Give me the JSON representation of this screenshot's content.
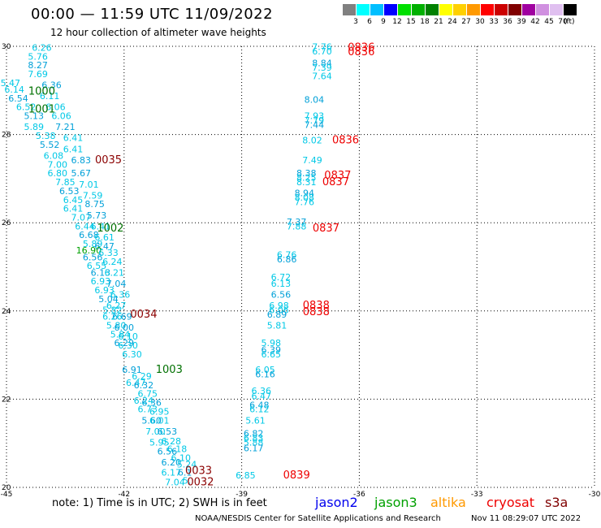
{
  "header": {
    "title": "00:00 — 11:59 UTC 11/09/2022",
    "subtitle": "12 hour collection of altimeter wave heights"
  },
  "legend": {
    "unit": "(ft)",
    "bins": [
      {
        "label": "3",
        "color": "#808080"
      },
      {
        "label": "6",
        "color": "#00ffff"
      },
      {
        "label": "9",
        "color": "#00bfff"
      },
      {
        "label": "12",
        "color": "#0000ff"
      },
      {
        "label": "15",
        "color": "#00e000"
      },
      {
        "label": "18",
        "color": "#00b000"
      },
      {
        "label": "21",
        "color": "#008000"
      },
      {
        "label": "24",
        "color": "#ffff00"
      },
      {
        "label": "27",
        "color": "#ffd000"
      },
      {
        "label": "30",
        "color": "#ff9900"
      },
      {
        "label": "33",
        "color": "#ff0000"
      },
      {
        "label": "36",
        "color": "#cc0000"
      },
      {
        "label": "39",
        "color": "#800000"
      },
      {
        "label": "42",
        "color": "#a000a0"
      },
      {
        "label": "45",
        "color": "#d090e0"
      },
      {
        "label": "70",
        "color": "#e0c0f0"
      },
      {
        "label": "",
        "color": "#000000"
      }
    ]
  },
  "footer": {
    "note": "note: 1) Time is in UTC; 2) SWH is in feet",
    "missions": [
      {
        "name": "jason2",
        "color": "#0000ee"
      },
      {
        "name": "jason3",
        "color": "#00a000"
      },
      {
        "name": "altika",
        "color": "#ff9900"
      },
      {
        "name": "cryosat",
        "color": "#ee0000"
      },
      {
        "name": "s3a",
        "color": "#800000"
      }
    ],
    "credit": "NOAA/NESDIS Center for Satellite Applications and Research",
    "timestamp": "Nov 11 08:29:07 UTC 2022"
  },
  "chart_data": {
    "type": "scatter",
    "xlim": [
      -45,
      -30
    ],
    "ylim": [
      20,
      30
    ],
    "x_ticks": [
      "-45",
      "-42",
      "-39",
      "-36",
      "-33",
      "-30"
    ],
    "y_ticks": [
      "20",
      "22",
      "24",
      "26",
      "28",
      "30"
    ],
    "x_tick_values": [
      -45,
      -42,
      -39,
      -36,
      -33,
      -30
    ],
    "y_tick_values": [
      20,
      22,
      24,
      26,
      28,
      30
    ],
    "grid": true,
    "wave_color": "#00c8e6",
    "wave_color_dark": "#00a0d8",
    "tracks": [
      {
        "labels": [
          {
            "text": "1000",
            "lon": -44.1,
            "lat": 28.9,
            "color": "#007000"
          },
          {
            "text": "1001",
            "lon": -44.1,
            "lat": 28.5,
            "color": "#007000"
          },
          {
            "text": "1002",
            "lon": -42.35,
            "lat": 25.8,
            "color": "#007000"
          },
          {
            "text": "1003",
            "lon": -40.85,
            "lat": 22.6,
            "color": "#007000"
          }
        ],
        "points": [
          {
            "lon": -44.1,
            "lat": 29.9,
            "v": "6.26"
          },
          {
            "lon": -44.2,
            "lat": 29.7,
            "v": "5.76"
          },
          {
            "lon": -44.2,
            "lat": 29.5,
            "v": "8.27"
          },
          {
            "lon": -44.2,
            "lat": 29.3,
            "v": "7.69"
          },
          {
            "lon": -44.9,
            "lat": 29.1,
            "v": "5.47"
          },
          {
            "lon": -43.85,
            "lat": 29.05,
            "v": "6.36"
          },
          {
            "lon": -44.8,
            "lat": 28.95,
            "v": "6.14"
          },
          {
            "lon": -43.9,
            "lat": 28.8,
            "v": "6.11"
          },
          {
            "lon": -44.7,
            "lat": 28.75,
            "v": "6.54"
          },
          {
            "lon": -44.5,
            "lat": 28.55,
            "v": "6.52"
          },
          {
            "lon": -43.75,
            "lat": 28.55,
            "v": "6.06"
          },
          {
            "lon": -44.3,
            "lat": 28.35,
            "v": "5.13"
          },
          {
            "lon": -43.6,
            "lat": 28.35,
            "v": "6.06"
          },
          {
            "lon": -44.3,
            "lat": 28.1,
            "v": "5.89"
          },
          {
            "lon": -43.5,
            "lat": 28.1,
            "v": "7.21"
          },
          {
            "lon": -44.0,
            "lat": 27.9,
            "v": "5.38"
          },
          {
            "lon": -43.3,
            "lat": 27.85,
            "v": "6.41"
          },
          {
            "lon": -43.9,
            "lat": 27.7,
            "v": "5.52"
          },
          {
            "lon": -43.3,
            "lat": 27.6,
            "v": "6.41"
          },
          {
            "lon": -43.8,
            "lat": 27.45,
            "v": "6.08"
          },
          {
            "lon": -43.1,
            "lat": 27.35,
            "v": "6.83"
          },
          {
            "lon": -43.7,
            "lat": 27.25,
            "v": "7.00"
          },
          {
            "lon": -43.7,
            "lat": 27.05,
            "v": "6.80"
          },
          {
            "lon": -43.1,
            "lat": 27.05,
            "v": "5.67"
          },
          {
            "lon": -43.5,
            "lat": 26.85,
            "v": "7.85"
          },
          {
            "lon": -42.9,
            "lat": 26.8,
            "v": "7.01"
          },
          {
            "lon": -43.4,
            "lat": 26.65,
            "v": "6.53"
          },
          {
            "lon": -42.8,
            "lat": 26.55,
            "v": "7.59"
          },
          {
            "lon": -43.3,
            "lat": 26.45,
            "v": "6.45"
          },
          {
            "lon": -42.75,
            "lat": 26.35,
            "v": "8.75"
          },
          {
            "lon": -43.3,
            "lat": 26.25,
            "v": "6.41"
          },
          {
            "lon": -43.1,
            "lat": 26.05,
            "v": "7.07"
          },
          {
            "lon": -42.7,
            "lat": 26.1,
            "v": "5.73"
          },
          {
            "lon": -43.0,
            "lat": 25.85,
            "v": "6.44"
          },
          {
            "lon": -42.6,
            "lat": 25.85,
            "v": "6.41"
          },
          {
            "lon": -42.9,
            "lat": 25.65,
            "v": "6.68"
          },
          {
            "lon": -42.5,
            "lat": 25.6,
            "v": "6.61"
          },
          {
            "lon": -42.8,
            "lat": 25.45,
            "v": "5.89"
          },
          {
            "lon": -42.5,
            "lat": 25.4,
            "v": "6.47"
          },
          {
            "lon": -42.9,
            "lat": 25.3,
            "v": "16.90",
            "color": "#00a000"
          },
          {
            "lon": -42.4,
            "lat": 25.25,
            "v": "6.33"
          },
          {
            "lon": -42.8,
            "lat": 25.15,
            "v": "6.56"
          },
          {
            "lon": -42.3,
            "lat": 25.05,
            "v": "6.24"
          },
          {
            "lon": -42.7,
            "lat": 24.95,
            "v": "6.55"
          },
          {
            "lon": -42.6,
            "lat": 24.8,
            "v": "6.13"
          },
          {
            "lon": -42.25,
            "lat": 24.8,
            "v": "6.21"
          },
          {
            "lon": -42.6,
            "lat": 24.6,
            "v": "6.93"
          },
          {
            "lon": -42.2,
            "lat": 24.55,
            "v": "7.04"
          },
          {
            "lon": -42.5,
            "lat": 24.4,
            "v": "6.93"
          },
          {
            "lon": -42.1,
            "lat": 24.3,
            "v": "6.36"
          },
          {
            "lon": -42.4,
            "lat": 24.2,
            "v": "5.04"
          },
          {
            "lon": -42.2,
            "lat": 24.05,
            "v": "6.27"
          },
          {
            "lon": -42.3,
            "lat": 23.95,
            "v": "5.82"
          },
          {
            "lon": -42.05,
            "lat": 23.8,
            "v": "6.69"
          },
          {
            "lon": -42.3,
            "lat": 23.8,
            "v": "6.26"
          },
          {
            "lon": -42.2,
            "lat": 23.6,
            "v": "5.80"
          },
          {
            "lon": -42.0,
            "lat": 23.55,
            "v": "6.00"
          },
          {
            "lon": -42.1,
            "lat": 23.4,
            "v": "5.84"
          },
          {
            "lon": -41.9,
            "lat": 23.35,
            "v": "6.10"
          },
          {
            "lon": -42.0,
            "lat": 23.2,
            "v": "6.29"
          },
          {
            "lon": -41.9,
            "lat": 23.15,
            "v": "6.30"
          },
          {
            "lon": -41.8,
            "lat": 22.95,
            "v": "6.30"
          },
          {
            "lon": -41.8,
            "lat": 22.6,
            "v": "6.91"
          },
          {
            "lon": -41.55,
            "lat": 22.45,
            "v": "6.29"
          },
          {
            "lon": -41.7,
            "lat": 22.3,
            "v": "6.47"
          },
          {
            "lon": -41.5,
            "lat": 22.25,
            "v": "6.32"
          },
          {
            "lon": -41.4,
            "lat": 22.05,
            "v": "6.75"
          },
          {
            "lon": -41.5,
            "lat": 21.9,
            "v": "6.24"
          },
          {
            "lon": -41.3,
            "lat": 21.85,
            "v": "6.36"
          },
          {
            "lon": -41.4,
            "lat": 21.7,
            "v": "6.73"
          },
          {
            "lon": -41.1,
            "lat": 21.65,
            "v": "6.95"
          },
          {
            "lon": -41.3,
            "lat": 21.45,
            "v": "5.60"
          },
          {
            "lon": -41.1,
            "lat": 21.45,
            "v": "6.01"
          },
          {
            "lon": -41.2,
            "lat": 21.2,
            "v": "7.00"
          },
          {
            "lon": -40.9,
            "lat": 21.2,
            "v": "6.53"
          },
          {
            "lon": -41.1,
            "lat": 20.95,
            "v": "5.95"
          },
          {
            "lon": -40.8,
            "lat": 20.98,
            "v": "6.28"
          },
          {
            "lon": -40.9,
            "lat": 20.75,
            "v": "6.56"
          },
          {
            "lon": -40.65,
            "lat": 20.8,
            "v": "6.18"
          },
          {
            "lon": -40.55,
            "lat": 20.6,
            "v": "6.10"
          },
          {
            "lon": -40.8,
            "lat": 20.5,
            "v": "6.20"
          },
          {
            "lon": -40.4,
            "lat": 20.45,
            "v": "5.24"
          },
          {
            "lon": -40.8,
            "lat": 20.27,
            "v": "6.17"
          },
          {
            "lon": -40.45,
            "lat": 20.27,
            "v": "6.1"
          },
          {
            "lon": -40.7,
            "lat": 20.05,
            "v": "7.04"
          },
          {
            "lon": -40.4,
            "lat": 20.08,
            "v": "5."
          }
        ]
      },
      {
        "labels": [
          {
            "text": "0035",
            "lon": -42.4,
            "lat": 27.35,
            "color": "#8b0000"
          },
          {
            "text": "0034",
            "lon": -41.5,
            "lat": 23.85,
            "color": "#8b0000"
          },
          {
            "text": "0033",
            "lon": -40.1,
            "lat": 20.3,
            "color": "#8b0000"
          },
          {
            "text": "0032",
            "lon": -40.05,
            "lat": 20.05,
            "color": "#8b0000"
          }
        ],
        "points": []
      },
      {
        "labels": [
          {
            "text": "0836",
            "lon": -35.95,
            "lat": 29.9,
            "color": "#ee0000"
          },
          {
            "text": "0836",
            "lon": -35.95,
            "lat": 29.8,
            "color": "#ee0000"
          },
          {
            "text": "0836",
            "lon": -36.35,
            "lat": 27.8,
            "color": "#ee0000"
          },
          {
            "text": "0837",
            "lon": -36.55,
            "lat": 27.0,
            "color": "#ee0000"
          },
          {
            "text": "0837",
            "lon": -36.6,
            "lat": 26.85,
            "color": "#ee0000"
          },
          {
            "text": "0837",
            "lon": -36.85,
            "lat": 25.8,
            "color": "#ee0000"
          },
          {
            "text": "0838",
            "lon": -37.1,
            "lat": 24.05,
            "color": "#ee0000"
          },
          {
            "text": "0838",
            "lon": -37.1,
            "lat": 23.9,
            "color": "#ee0000"
          },
          {
            "text": "0839",
            "lon": -37.6,
            "lat": 20.2,
            "color": "#ee0000"
          }
        ],
        "points": [
          {
            "lon": -36.95,
            "lat": 29.92,
            "v": "7.76"
          },
          {
            "lon": -36.95,
            "lat": 29.82,
            "v": "6.70"
          },
          {
            "lon": -36.95,
            "lat": 29.55,
            "v": "8.84"
          },
          {
            "lon": -36.95,
            "lat": 29.45,
            "v": "7.39"
          },
          {
            "lon": -36.95,
            "lat": 29.25,
            "v": "7.64"
          },
          {
            "lon": -37.15,
            "lat": 28.72,
            "v": "8.04"
          },
          {
            "lon": -37.15,
            "lat": 28.35,
            "v": "7.93"
          },
          {
            "lon": -37.15,
            "lat": 28.25,
            "v": "7.79"
          },
          {
            "lon": -37.15,
            "lat": 28.15,
            "v": "7.44"
          },
          {
            "lon": -37.2,
            "lat": 27.8,
            "v": "8.02"
          },
          {
            "lon": -37.2,
            "lat": 27.35,
            "v": "7.49"
          },
          {
            "lon": -37.35,
            "lat": 27.05,
            "v": "8.38"
          },
          {
            "lon": -37.35,
            "lat": 26.95,
            "v": "8.25"
          },
          {
            "lon": -37.35,
            "lat": 26.85,
            "v": "8.31"
          },
          {
            "lon": -37.4,
            "lat": 26.6,
            "v": "8.94"
          },
          {
            "lon": -37.4,
            "lat": 26.5,
            "v": "8.08"
          },
          {
            "lon": -37.4,
            "lat": 26.4,
            "v": "7.76"
          },
          {
            "lon": -37.6,
            "lat": 25.95,
            "v": "7.37"
          },
          {
            "lon": -37.6,
            "lat": 25.85,
            "v": "7.88"
          },
          {
            "lon": -37.85,
            "lat": 25.2,
            "v": "6.76"
          },
          {
            "lon": -37.85,
            "lat": 25.1,
            "v": "6.86"
          },
          {
            "lon": -38.0,
            "lat": 24.7,
            "v": "6.72"
          },
          {
            "lon": -38.0,
            "lat": 24.55,
            "v": "6.13"
          },
          {
            "lon": -38.0,
            "lat": 24.3,
            "v": "6.56"
          },
          {
            "lon": -38.05,
            "lat": 24.05,
            "v": "6.98"
          },
          {
            "lon": -38.05,
            "lat": 23.95,
            "v": "6.06"
          },
          {
            "lon": -38.1,
            "lat": 23.85,
            "v": "6.89"
          },
          {
            "lon": -38.1,
            "lat": 23.6,
            "v": "5.81"
          },
          {
            "lon": -38.25,
            "lat": 23.2,
            "v": "5.98"
          },
          {
            "lon": -38.25,
            "lat": 23.05,
            "v": "6.39"
          },
          {
            "lon": -38.25,
            "lat": 22.95,
            "v": "6.65"
          },
          {
            "lon": -38.4,
            "lat": 22.6,
            "v": "6.05"
          },
          {
            "lon": -38.4,
            "lat": 22.5,
            "v": "6.16"
          },
          {
            "lon": -38.5,
            "lat": 22.12,
            "v": "6.36"
          },
          {
            "lon": -38.5,
            "lat": 22.0,
            "v": "6.47"
          },
          {
            "lon": -38.55,
            "lat": 21.8,
            "v": "6.48"
          },
          {
            "lon": -38.55,
            "lat": 21.7,
            "v": "6.12"
          },
          {
            "lon": -38.65,
            "lat": 21.45,
            "v": "5.61"
          },
          {
            "lon": -38.7,
            "lat": 21.15,
            "v": "6.82"
          },
          {
            "lon": -38.7,
            "lat": 21.05,
            "v": "6.83"
          },
          {
            "lon": -38.7,
            "lat": 20.95,
            "v": "5.88"
          },
          {
            "lon": -38.7,
            "lat": 20.82,
            "v": "6.17"
          },
          {
            "lon": -38.9,
            "lat": 20.2,
            "v": "6.85"
          }
        ]
      }
    ]
  }
}
